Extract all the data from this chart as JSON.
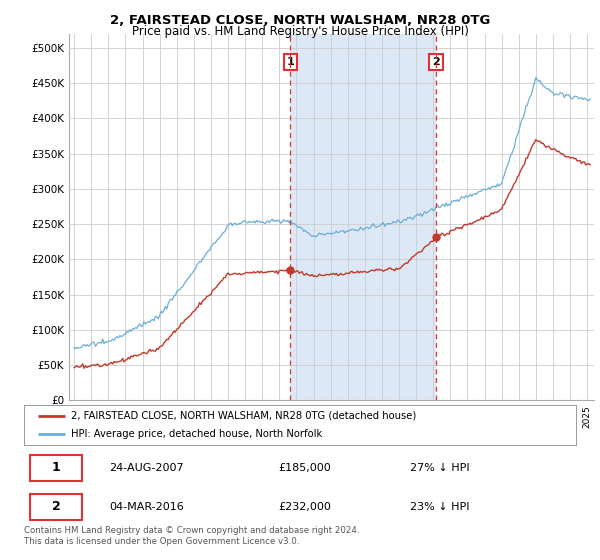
{
  "title1": "2, FAIRSTEAD CLOSE, NORTH WALSHAM, NR28 0TG",
  "title2": "Price paid vs. HM Land Registry's House Price Index (HPI)",
  "legend1": "2, FAIRSTEAD CLOSE, NORTH WALSHAM, NR28 0TG (detached house)",
  "legend2": "HPI: Average price, detached house, North Norfolk",
  "sale1_date": "24-AUG-2007",
  "sale1_price": 185000,
  "sale1_label": "27% ↓ HPI",
  "sale2_date": "04-MAR-2016",
  "sale2_price": 232000,
  "sale2_label": "23% ↓ HPI",
  "footnote": "Contains HM Land Registry data © Crown copyright and database right 2024.\nThis data is licensed under the Open Government Licence v3.0.",
  "hpi_color": "#6baed6",
  "price_color": "#c0392b",
  "vline_color": "#e03030",
  "shade_color": "#dce8f5",
  "ylim_min": 0,
  "ylim_max": 520000,
  "yticks": [
    0,
    50000,
    100000,
    150000,
    200000,
    250000,
    300000,
    350000,
    400000,
    450000,
    500000
  ],
  "sale1_x": 2007.6389,
  "sale2_x": 2016.1667
}
